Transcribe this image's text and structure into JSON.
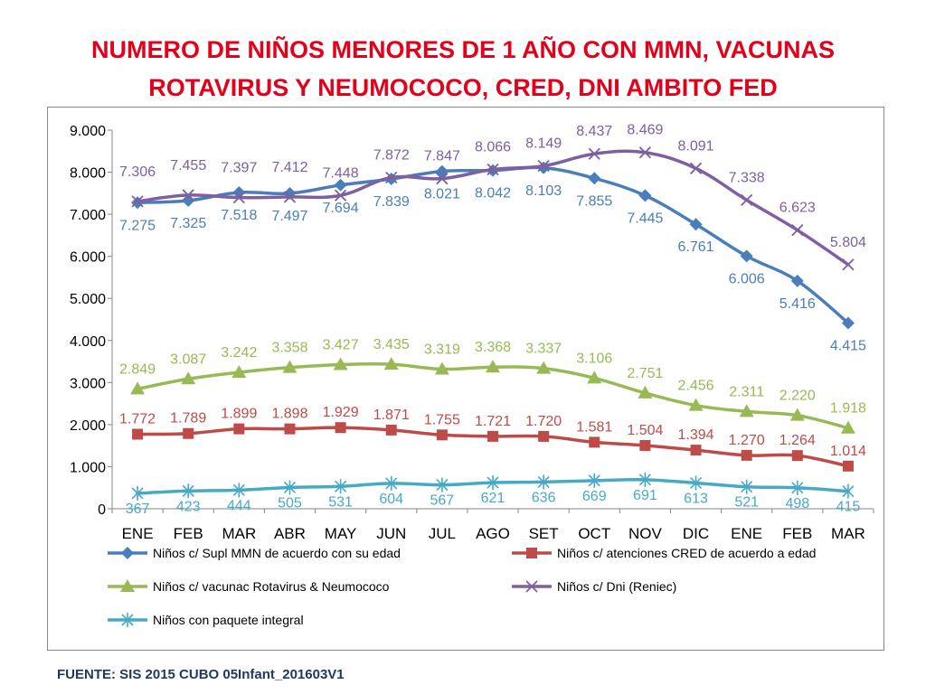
{
  "title_line1": "NUMERO DE NIÑOS MENORES DE 1 AÑO CON MMN, VACUNAS",
  "title_line2": "ROTAVIRUS Y NEUMOCOCO, CRED, DNI AMBITO FED",
  "footer": "FUENTE: SIS 2015 CUBO 05Infant_201603V1",
  "chart_data": {
    "type": "line",
    "categories": [
      "ENE",
      "FEB",
      "MAR",
      "ABR",
      "MAY",
      "JUN",
      "JUL",
      "AGO",
      "SET",
      "OCT",
      "NOV",
      "DIC",
      "ENE",
      "FEB",
      "MAR"
    ],
    "ylim": [
      0,
      9000
    ],
    "yticks": [
      0,
      1000,
      2000,
      3000,
      4000,
      5000,
      6000,
      7000,
      8000,
      9000
    ],
    "ytick_labels": [
      "0",
      "1.000",
      "2.000",
      "3.000",
      "4.000",
      "5.000",
      "6.000",
      "7.000",
      "8.000",
      "9.000"
    ],
    "grid": false,
    "legend_position": "bottom",
    "series": [
      {
        "name": "Niños c/ Supl MMN de acuerdo con su edad",
        "color": "#4a7ebb",
        "marker": "diamond",
        "values": [
          7275,
          7325,
          7518,
          7497,
          7694,
          7839,
          8021,
          8042,
          8103,
          7855,
          7445,
          6761,
          6006,
          5416,
          4415
        ],
        "labels": [
          "7.275",
          "7.325",
          "7.518",
          "7.497",
          "7.694",
          "7.839",
          "8.021",
          "8.042",
          "8.103",
          "7.855",
          "7.445",
          "6.761",
          "6.006",
          "5.416",
          "4.415"
        ]
      },
      {
        "name": "Niños c/ atenciones CRED de acuerdo a edad",
        "color": "#be4b48",
        "marker": "square",
        "values": [
          1772,
          1789,
          1899,
          1898,
          1929,
          1871,
          1755,
          1721,
          1720,
          1581,
          1504,
          1394,
          1270,
          1264,
          1014
        ],
        "labels": [
          "1.772",
          "1.789",
          "1.899",
          "1.898",
          "1.929",
          "1.871",
          "1.755",
          "1.721",
          "1.720",
          "1.581",
          "1.504",
          "1.394",
          "1.270",
          "1.264",
          "1.014"
        ]
      },
      {
        "name": "Niños c/ vacunac Rotavirus & Neumococo",
        "color": "#98b954",
        "marker": "triangle",
        "values": [
          2849,
          3087,
          3242,
          3358,
          3427,
          3435,
          3319,
          3368,
          3337,
          3106,
          2751,
          2456,
          2311,
          2220,
          1918
        ],
        "labels": [
          "2.849",
          "3.087",
          "3.242",
          "3.358",
          "3.427",
          "3.435",
          "3.319",
          "3.368",
          "3.337",
          "3.106",
          "2.751",
          "2.456",
          "2.311",
          "2.220",
          "1.918"
        ]
      },
      {
        "name": "Niños c/ Dni (Reniec)",
        "color": "#7d60a0",
        "marker": "x",
        "values": [
          7306,
          7455,
          7397,
          7412,
          7448,
          7872,
          7847,
          8066,
          8149,
          8437,
          8469,
          8091,
          7338,
          6623,
          5804
        ],
        "labels": [
          "7.306",
          "7.455",
          "7.397",
          "7.412",
          "7.448",
          "7.872",
          "7.847",
          "8.066",
          "8.149",
          "8.437",
          "8.469",
          "8.091",
          "7.338",
          "6.623",
          "5.804"
        ]
      },
      {
        "name": "Niños con paquete integral",
        "color": "#46aac5",
        "marker": "star",
        "values": [
          367,
          423,
          444,
          505,
          531,
          604,
          567,
          621,
          636,
          669,
          691,
          613,
          521,
          498,
          415
        ],
        "labels": [
          "367",
          "423",
          "444",
          "505",
          "531",
          "604",
          "567",
          "621",
          "636",
          "669",
          "691",
          "613",
          "521",
          "498",
          "415"
        ]
      }
    ]
  }
}
